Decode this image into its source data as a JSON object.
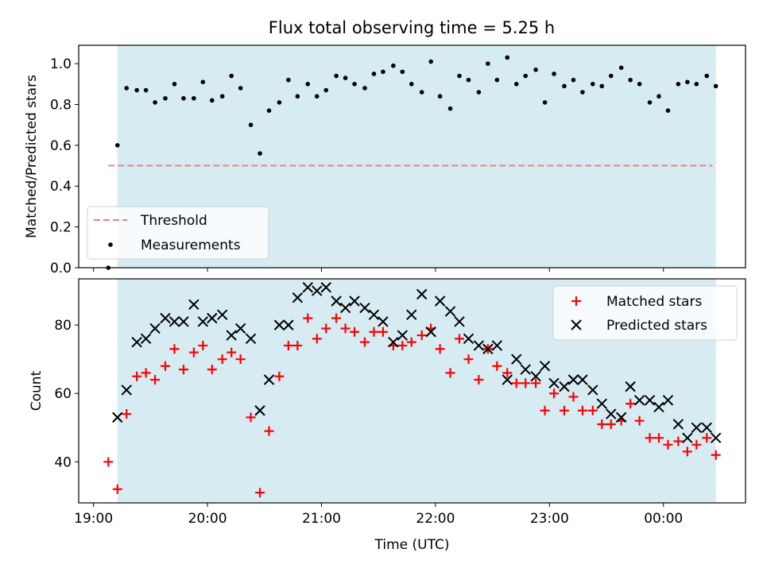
{
  "title": "Flux total observing time = 5.25 h",
  "colors": {
    "shade": "#add8e6",
    "threshold": "#f08080",
    "measurement": "#000000",
    "matched": "#ff0000",
    "predicted": "#000000"
  },
  "chart_data": [
    {
      "type": "scatter",
      "ylabel": "Matched/Predicted stars",
      "xlim": [
        18.87,
        24.72
      ],
      "ylim": [
        0.0,
        1.09
      ],
      "x_ticks": [
        "19:00",
        "20:00",
        "21:00",
        "22:00",
        "23:00",
        "00:00"
      ],
      "x_tick_values": [
        19,
        20,
        21,
        22,
        23,
        24
      ],
      "y_ticks": [
        "0.0",
        "0.2",
        "0.4",
        "0.6",
        "0.8",
        "1.0"
      ],
      "y_tick_values": [
        0,
        0.2,
        0.4,
        0.6,
        0.8,
        1.0
      ],
      "shaded_span": [
        19.21,
        24.46
      ],
      "legend": {
        "position": "lower left",
        "entries": [
          "Threshold",
          "Measurements"
        ]
      },
      "threshold": {
        "name": "Threshold",
        "value": 0.5,
        "x_range": [
          19.13,
          24.43
        ]
      },
      "series": [
        {
          "name": "Measurements",
          "x": [
            19.13,
            19.21,
            19.29,
            19.38,
            19.46,
            19.54,
            19.63,
            19.71,
            19.79,
            19.88,
            19.96,
            20.04,
            20.13,
            20.21,
            20.29,
            20.38,
            20.46,
            20.54,
            20.63,
            20.71,
            20.79,
            20.88,
            20.96,
            21.04,
            21.13,
            21.21,
            21.29,
            21.38,
            21.46,
            21.54,
            21.63,
            21.71,
            21.79,
            21.88,
            21.96,
            22.04,
            22.13,
            22.21,
            22.29,
            22.38,
            22.46,
            22.54,
            22.63,
            22.71,
            22.79,
            22.88,
            22.96,
            23.04,
            23.13,
            23.21,
            23.29,
            23.38,
            23.46,
            23.54,
            23.63,
            23.71,
            23.79,
            23.88,
            23.96,
            24.04,
            24.13,
            24.21,
            24.29,
            24.38,
            24.46
          ],
          "y": [
            0.0,
            0.6,
            0.88,
            0.87,
            0.87,
            0.81,
            0.83,
            0.9,
            0.83,
            0.83,
            0.91,
            0.82,
            0.84,
            0.94,
            0.88,
            0.7,
            0.56,
            0.77,
            0.81,
            0.92,
            0.84,
            0.9,
            0.84,
            0.87,
            0.94,
            0.93,
            0.9,
            0.88,
            0.95,
            0.96,
            0.99,
            0.96,
            0.9,
            0.86,
            1.01,
            0.84,
            0.78,
            0.94,
            0.92,
            0.86,
            1.0,
            0.92,
            1.03,
            0.9,
            0.94,
            0.97,
            0.81,
            0.95,
            0.89,
            0.92,
            0.86,
            0.9,
            0.89,
            0.94,
            0.98,
            0.92,
            0.9,
            0.81,
            0.84,
            0.77,
            0.9,
            0.91,
            0.9,
            0.94,
            0.89
          ]
        }
      ]
    },
    {
      "type": "scatter",
      "xlabel": "Time (UTC)",
      "ylabel": "Count",
      "xlim": [
        18.87,
        24.72
      ],
      "ylim": [
        28.0,
        93.5
      ],
      "x_ticks": [
        "19:00",
        "20:00",
        "21:00",
        "22:00",
        "23:00",
        "00:00"
      ],
      "x_tick_values": [
        19,
        20,
        21,
        22,
        23,
        24
      ],
      "y_ticks": [
        "40",
        "60",
        "80"
      ],
      "y_tick_values": [
        40,
        60,
        80
      ],
      "shaded_span": [
        19.21,
        24.46
      ],
      "legend": {
        "position": "upper right",
        "entries": [
          "Matched stars",
          "Predicted stars"
        ]
      },
      "series": [
        {
          "name": "Matched stars",
          "marker": "plus",
          "x": [
            19.13,
            19.21,
            19.29,
            19.38,
            19.46,
            19.54,
            19.63,
            19.71,
            19.79,
            19.88,
            19.96,
            20.04,
            20.13,
            20.21,
            20.29,
            20.38,
            20.46,
            20.54,
            20.63,
            20.71,
            20.79,
            20.88,
            20.96,
            21.04,
            21.13,
            21.21,
            21.29,
            21.38,
            21.46,
            21.54,
            21.63,
            21.71,
            21.79,
            21.88,
            21.96,
            22.04,
            22.13,
            22.21,
            22.29,
            22.38,
            22.46,
            22.54,
            22.63,
            22.71,
            22.79,
            22.88,
            22.96,
            23.04,
            23.13,
            23.21,
            23.29,
            23.38,
            23.46,
            23.54,
            23.63,
            23.71,
            23.79,
            23.88,
            23.96,
            24.04,
            24.13,
            24.21,
            24.29,
            24.38,
            24.46
          ],
          "y": [
            40,
            32,
            54,
            65,
            66,
            64,
            68,
            73,
            67,
            72,
            74,
            67,
            70,
            72,
            70,
            53,
            31,
            49,
            65,
            74,
            74,
            82,
            76,
            79,
            82,
            79,
            78,
            75,
            78,
            78,
            74,
            74,
            75,
            77,
            79,
            73,
            66,
            76,
            70,
            64,
            73,
            68,
            66,
            63,
            63,
            63,
            55,
            60,
            55,
            59,
            55,
            55,
            51,
            51,
            52,
            57,
            52,
            47,
            47,
            45,
            46,
            43,
            45,
            47,
            42
          ]
        },
        {
          "name": "Predicted stars",
          "marker": "x",
          "x": [
            19.21,
            19.29,
            19.38,
            19.46,
            19.54,
            19.63,
            19.71,
            19.79,
            19.88,
            19.96,
            20.04,
            20.13,
            20.21,
            20.29,
            20.38,
            20.46,
            20.54,
            20.63,
            20.71,
            20.79,
            20.88,
            20.96,
            21.04,
            21.13,
            21.21,
            21.29,
            21.38,
            21.46,
            21.54,
            21.63,
            21.71,
            21.79,
            21.88,
            21.96,
            22.04,
            22.13,
            22.21,
            22.29,
            22.38,
            22.46,
            22.54,
            22.63,
            22.71,
            22.79,
            22.88,
            22.96,
            23.04,
            23.13,
            23.21,
            23.29,
            23.38,
            23.46,
            23.54,
            23.63,
            23.71,
            23.79,
            23.88,
            23.96,
            24.04,
            24.13,
            24.21,
            24.29,
            24.38,
            24.46
          ],
          "y": [
            53,
            61,
            75,
            76,
            79,
            82,
            81,
            81,
            86,
            81,
            82,
            83,
            77,
            79,
            76,
            55,
            64,
            80,
            80,
            88,
            91,
            90,
            91,
            87,
            85,
            87,
            85,
            83,
            81,
            75,
            77,
            83,
            89,
            78,
            87,
            84,
            81,
            76,
            74,
            73,
            74,
            64,
            70,
            67,
            65,
            68,
            63,
            62,
            64,
            64,
            61,
            57,
            54,
            53,
            62,
            58,
            58,
            56,
            58,
            51,
            47,
            50,
            50,
            47
          ]
        }
      ]
    }
  ]
}
